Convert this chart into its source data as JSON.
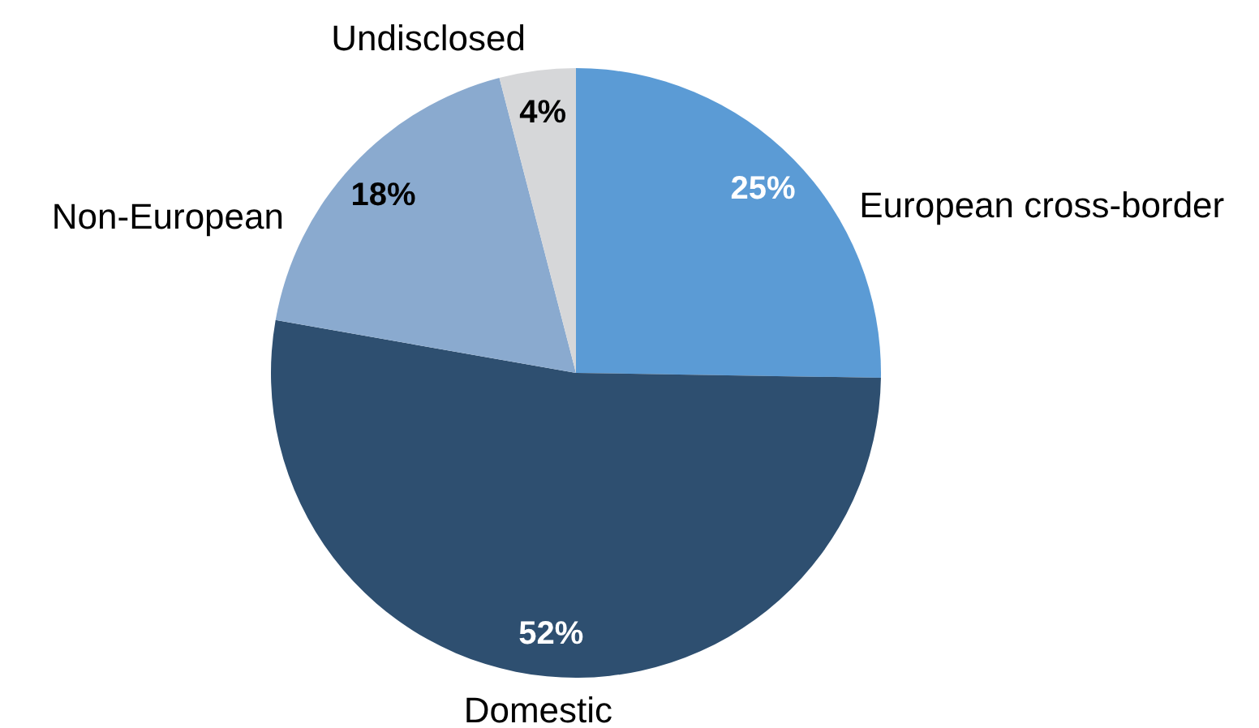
{
  "chart_data": {
    "type": "pie",
    "categories": [
      "European cross-border",
      "Domestic",
      "Non-European",
      "Undisclosed"
    ],
    "values": [
      25,
      52,
      18,
      4
    ],
    "colors": [
      "#5b9bd5",
      "#2e4f70",
      "#8aaacf",
      "#d6d7d9"
    ],
    "value_labels": [
      "25%",
      "52%",
      "18%",
      "4%"
    ]
  }
}
